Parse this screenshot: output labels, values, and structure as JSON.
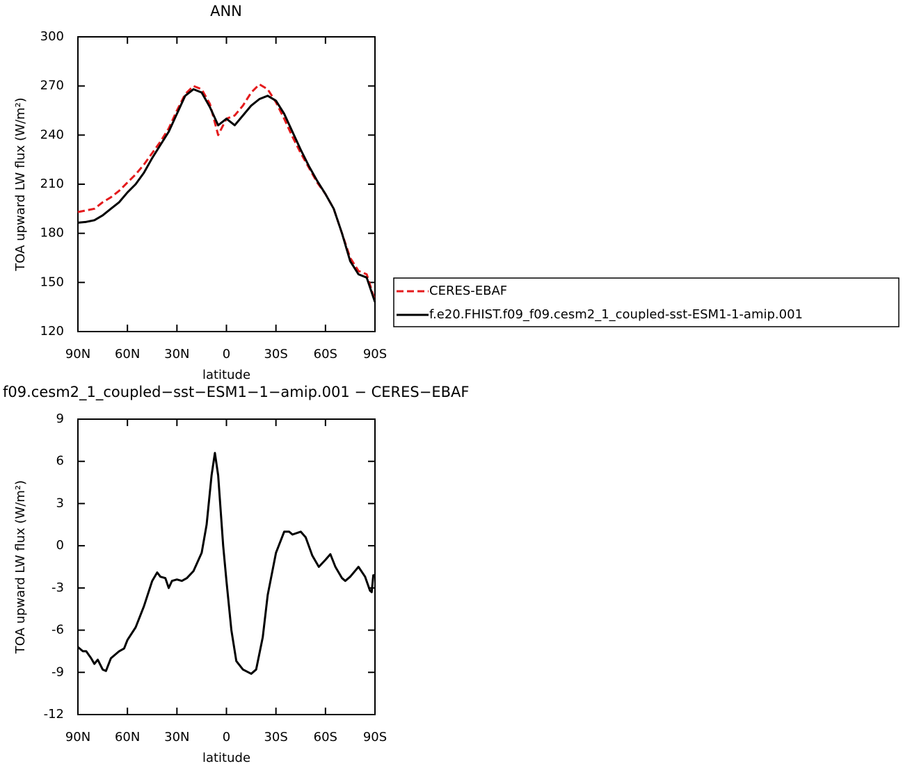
{
  "chart_data": [
    {
      "type": "line",
      "title": "ANN",
      "xlabel": "latitude",
      "ylabel": "TOA upward LW flux (W/m²)",
      "x": [
        90,
        85,
        80,
        75,
        70,
        65,
        60,
        55,
        50,
        45,
        40,
        35,
        30,
        25,
        20,
        15,
        10,
        5,
        0,
        -5,
        -10,
        -15,
        -20,
        -25,
        -30,
        -35,
        -40,
        -45,
        -50,
        -55,
        -60,
        -65,
        -70,
        -75,
        -80,
        -85,
        -90
      ],
      "series": [
        {
          "name": "CERES-EBAF",
          "color": "#e41a1c",
          "style": "dashed",
          "values": [
            193,
            194,
            195,
            199,
            202,
            206,
            211,
            216,
            222,
            229,
            236,
            244,
            255,
            265,
            270,
            268,
            259,
            240,
            250,
            252,
            258,
            266,
            271,
            268,
            260,
            250,
            239,
            229,
            220,
            211,
            204,
            195,
            180,
            165,
            157,
            155,
            139
          ]
        },
        {
          "name": "f.e20.FHIST.f09_f09.cesm2_1_coupled-sst-ESM1-1-amip.001",
          "color": "#000000",
          "style": "solid",
          "values": [
            186.5,
            187,
            188,
            191,
            195,
            199,
            205,
            210,
            217,
            226,
            234,
            242,
            253,
            264,
            268,
            266,
            257,
            246,
            250,
            246,
            252,
            258,
            262,
            264,
            261,
            253,
            242,
            231,
            221,
            212,
            204,
            195,
            180,
            163,
            155,
            153,
            138
          ]
        }
      ],
      "xlim": [
        90,
        -90
      ],
      "xticks": [
        {
          "value": 90,
          "label": "90N"
        },
        {
          "value": 60,
          "label": "60N"
        },
        {
          "value": 30,
          "label": "30N"
        },
        0,
        {
          "value": -30,
          "label": "30S"
        },
        {
          "value": -60,
          "label": "60S"
        },
        {
          "value": -90,
          "label": "90S"
        }
      ],
      "ylim": [
        120,
        300
      ],
      "yticks": [
        120,
        150,
        180,
        210,
        240,
        270,
        300
      ],
      "legend": "right"
    },
    {
      "type": "line",
      "title": "f09.cesm2_1_coupled−sst−ESM1−1−amip.001 − CERES−EBAF",
      "xlabel": "latitude",
      "ylabel": "TOA upward LW flux (W/m²)",
      "x": [
        90,
        87,
        85,
        82,
        80,
        78,
        75,
        73,
        70,
        65,
        62,
        60,
        55,
        50,
        45,
        42,
        40,
        37,
        35,
        33,
        30,
        27,
        24,
        20,
        15,
        12,
        9,
        7,
        5,
        2,
        0,
        -3,
        -6,
        -10,
        -15,
        -18,
        -22,
        -25,
        -30,
        -35,
        -38,
        -40,
        -45,
        -48,
        -52,
        -56,
        -60,
        -63,
        -66,
        -70,
        -72,
        -75,
        -80,
        -84,
        -87,
        -88,
        -89,
        -90
      ],
      "values": [
        -7.2,
        -7.5,
        -7.5,
        -8.0,
        -8.4,
        -8.1,
        -8.8,
        -8.9,
        -8.0,
        -7.5,
        -7.3,
        -6.7,
        -5.8,
        -4.3,
        -2.5,
        -1.9,
        -2.2,
        -2.3,
        -3.0,
        -2.5,
        -2.4,
        -2.5,
        -2.3,
        -1.8,
        -0.5,
        1.5,
        5,
        6.6,
        5.0,
        0,
        -2.5,
        -6,
        -8.2,
        -8.8,
        -9.1,
        -8.8,
        -6.5,
        -3.5,
        -0.5,
        1.0,
        1.0,
        0.8,
        1.0,
        0.6,
        -0.7,
        -1.5,
        -1.0,
        -0.6,
        -1.5,
        -2.3,
        -2.5,
        -2.2,
        -1.5,
        -2.2,
        -3.2,
        -3.3,
        -2.1,
        -2.1
      ],
      "color": "#000000",
      "xlim": [
        90,
        -90
      ],
      "xticks": [
        {
          "value": 90,
          "label": "90N"
        },
        {
          "value": 60,
          "label": "60N"
        },
        {
          "value": 30,
          "label": "30N"
        },
        0,
        {
          "value": -30,
          "label": "30S"
        },
        {
          "value": -60,
          "label": "60S"
        },
        {
          "value": -90,
          "label": "90S"
        }
      ],
      "ylim": [
        -12,
        9
      ],
      "yticks": [
        -12,
        -9,
        -6,
        -3,
        0,
        3,
        6,
        9
      ]
    }
  ]
}
